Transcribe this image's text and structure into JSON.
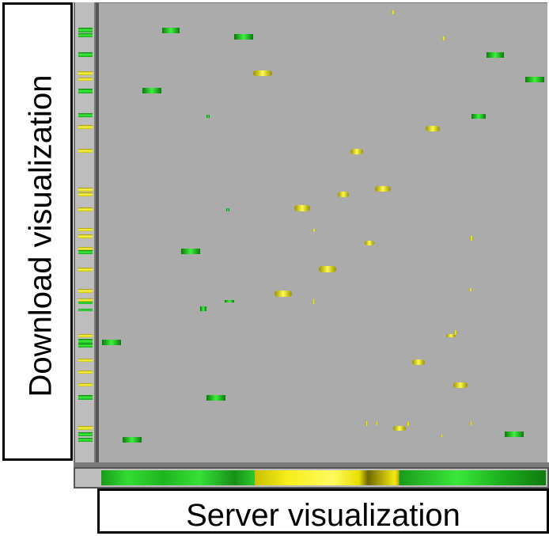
{
  "labels": {
    "left": "Download visualization",
    "bottom": "Server visualization"
  },
  "colors": {
    "green": "#22cc22",
    "yellow": "#f2e800",
    "background": "#ababab",
    "strip": "#bdbdbd"
  },
  "server_segments": [
    "green",
    "yellow",
    "green"
  ]
}
